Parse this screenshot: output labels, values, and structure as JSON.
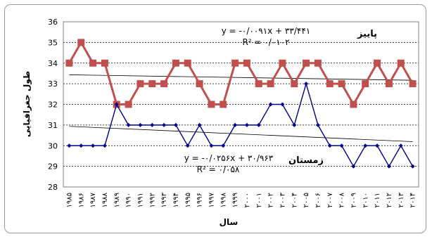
{
  "chart_data": {
    "type": "line",
    "xlabel": "سال",
    "ylabel": "طول جغرافیایی",
    "ylim": [
      28,
      36
    ],
    "yticks": [
      28,
      29,
      30,
      31,
      32,
      33,
      34,
      35,
      36
    ],
    "grid": "horizontal dashed",
    "categories": [
      "۱۹۸۵",
      "۱۹۸۶",
      "۱۹۸۷",
      "۱۹۸۸",
      "۱۹۸۹",
      "۱۹۹۰",
      "۱۹۹۱",
      "۱۹۹۲",
      "۱۹۹۳",
      "۱۹۹۴",
      "۱۹۹۵",
      "۱۹۹۶",
      "۱۹۹۷",
      "۱۹۹۸",
      "۱۹۹۹",
      "۲۰۰۰",
      "۲۰۰۱",
      "۲۰۰۲",
      "۲۰۰۳",
      "۲۰۰۴",
      "۲۰۰۵",
      "۲۰۰۶",
      "۲۰۰۷",
      "۲۰۰۸",
      "۲۰۰۹",
      "۲۰۱۰",
      "۲۰۱۱",
      "۲۰۱۲",
      "۲۰۱۳",
      "۲۰۱۴"
    ],
    "series": [
      {
        "name": "پاییز",
        "color": "#c0504d",
        "marker": "square",
        "values": [
          34,
          35,
          34,
          34,
          32,
          32,
          33,
          33,
          33,
          34,
          34,
          33,
          32,
          32,
          34,
          34,
          33,
          33,
          34,
          33,
          34,
          34,
          33,
          33,
          32,
          33,
          34,
          33,
          34,
          33
        ],
        "trend": {
          "slope": -0.0091,
          "intercept": 33.441,
          "equation": "y = -۰/۰۰۹۱x + ۳۳/۴۴۱",
          "r2": "R² = ۰/۰۱۰۲"
        }
      },
      {
        "name": "زمستان",
        "color": "#00008b",
        "marker": "diamond",
        "values": [
          30,
          30,
          30,
          30,
          32,
          31,
          31,
          31,
          31,
          31,
          30,
          31,
          30,
          30,
          31,
          31,
          31,
          32,
          32,
          31,
          33,
          31,
          30,
          30,
          29,
          30,
          30,
          29,
          30,
          29
        ],
        "trend": {
          "slope": -0.0256,
          "intercept": 30.963,
          "equation": "y = -۰/۰۲۵۶x + ۳۰/۹۶۳",
          "r2": "R² = ۰/۰۵۸"
        }
      }
    ]
  }
}
